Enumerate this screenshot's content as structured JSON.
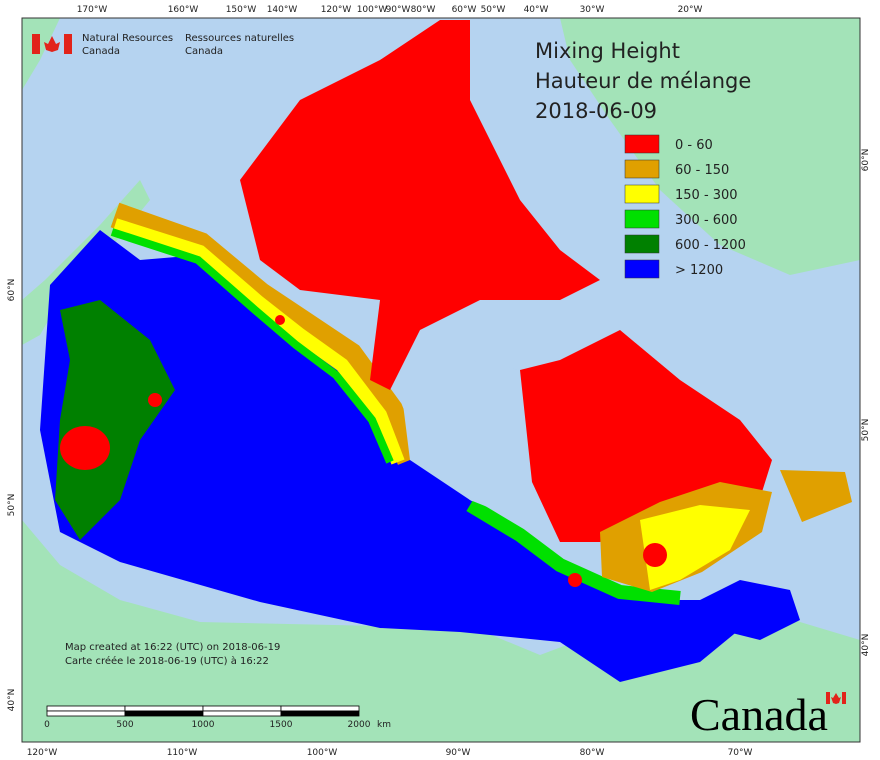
{
  "agency": {
    "en": [
      "Natural Resources",
      "Canada"
    ],
    "fr": [
      "Ressources naturelles",
      "Canada"
    ]
  },
  "title": [
    "Mixing Height",
    "Hauteur de mélange",
    "2018-06-09"
  ],
  "legend": {
    "items": [
      {
        "label": "0 - 60",
        "color": "#ff0000"
      },
      {
        "label": "60 - 150",
        "color": "#e0a000"
      },
      {
        "label": "150 - 300",
        "color": "#ffff00"
      },
      {
        "label": "300 - 600",
        "color": "#00e000"
      },
      {
        "label": "600 - 1200",
        "color": "#008000"
      },
      {
        "label": "> 1200",
        "color": "#0000ff"
      }
    ]
  },
  "notes": [
    "Map created at 16:22 (UTC) on 2018-06-19",
    "Carte créée le 2018-06-19 (UTC) à 16:22"
  ],
  "scale_bar": {
    "ticks": [
      "0",
      "500",
      "1000",
      "1500",
      "2000"
    ],
    "unit": "km"
  },
  "graticule": {
    "top": [
      "170°W",
      "160°W",
      "150°W",
      "140°W",
      "120°W",
      "100°W",
      "90°W",
      "80°W",
      "60°W",
      "50°W",
      "40°W",
      "30°W",
      "20°W"
    ],
    "bottom": [
      "120°W",
      "110°W",
      "100°W",
      "90°W",
      "80°W",
      "70°W"
    ],
    "left": [
      "60°N",
      "50°N",
      "40°N"
    ],
    "right": [
      "60°N",
      "50°N",
      "40°N"
    ]
  },
  "wordmark": "Canada"
}
